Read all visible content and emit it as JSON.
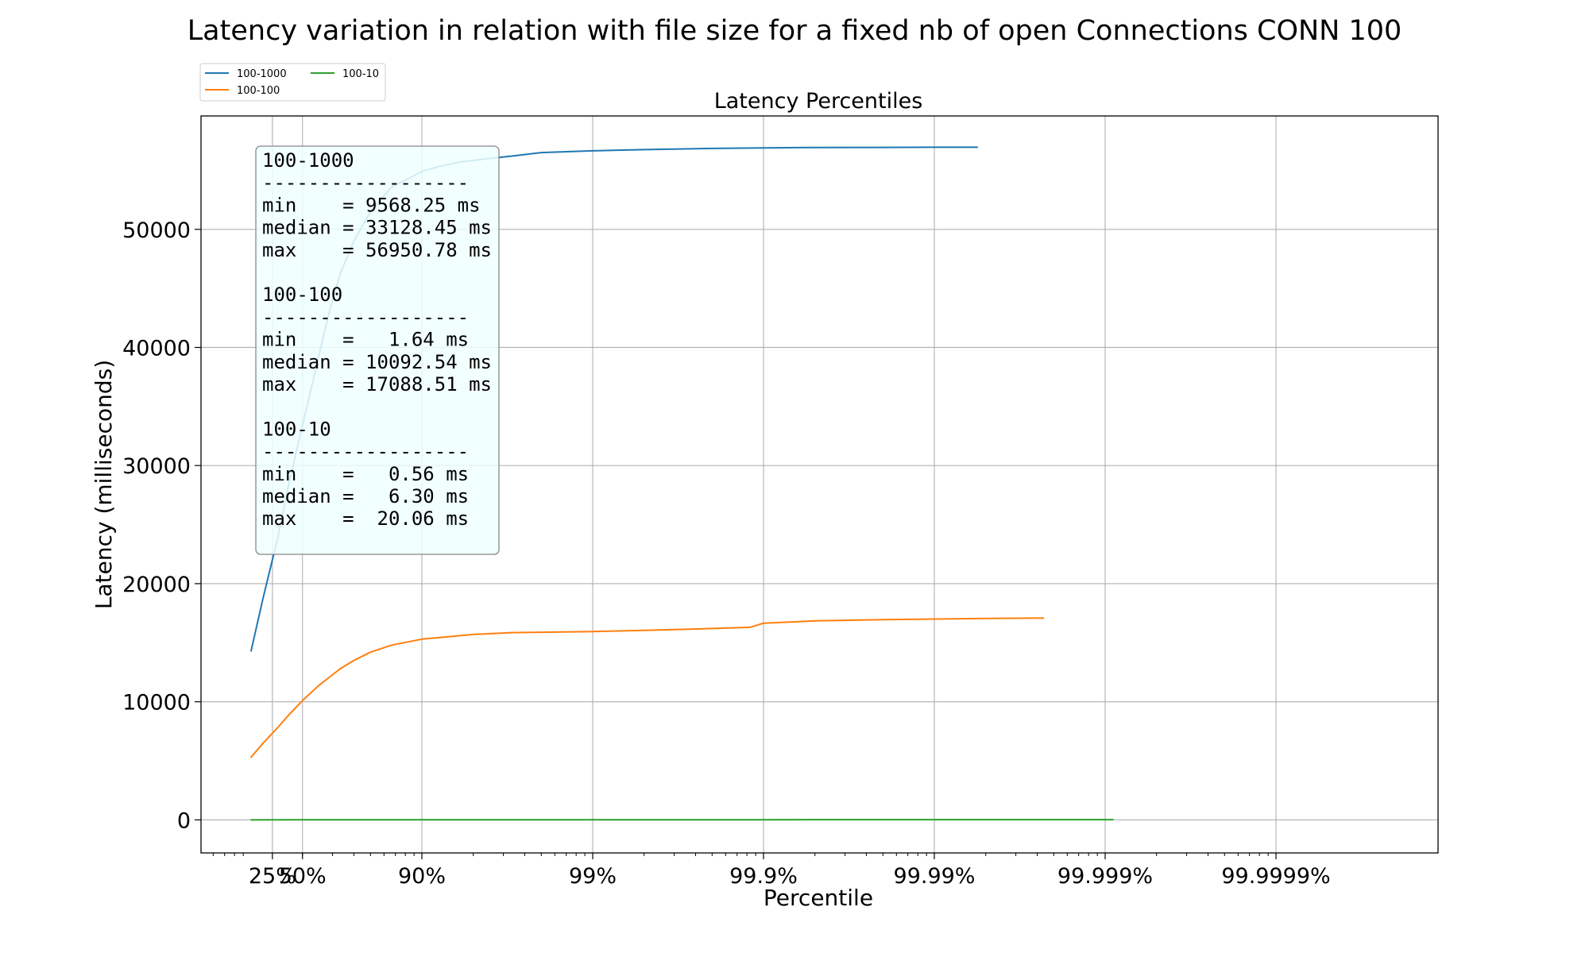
{
  "chart_data": {
    "type": "line",
    "title": "Latency variation in relation with file size for a fixed nb of open Connections CONN 100",
    "subtitle": "Latency Percentiles",
    "xlabel": "Percentile",
    "ylabel": "Latency (milliseconds)",
    "x_scale": "log(1/(1-percentile))",
    "xlim": [
      "",
      "99.9999%"
    ],
    "ylim": [
      -2800,
      59600
    ],
    "grid": true,
    "legend_position": "top-left",
    "x_ticks": [
      {
        "p": 25,
        "label": "25%"
      },
      {
        "p": 50,
        "label": "50%"
      },
      {
        "p": 90,
        "label": "90%"
      },
      {
        "p": 99,
        "label": "99%"
      },
      {
        "p": 99.9,
        "label": "99.9%"
      },
      {
        "p": 99.99,
        "label": "99.99%"
      },
      {
        "p": 99.999,
        "label": "99.999%"
      },
      {
        "p": 99.9999,
        "label": "99.9999%"
      }
    ],
    "y_ticks": [
      {
        "v": 0,
        "label": "0"
      },
      {
        "v": 10000,
        "label": "10000"
      },
      {
        "v": 20000,
        "label": "20000"
      },
      {
        "v": 30000,
        "label": "30000"
      },
      {
        "v": 40000,
        "label": "40000"
      },
      {
        "v": 50000,
        "label": "50000"
      }
    ],
    "series": [
      {
        "name": "100-1000",
        "color": "#1f77b4",
        "points": [
          [
            0,
            14300
          ],
          [
            15,
            18800
          ],
          [
            30,
            23800
          ],
          [
            40,
            28500
          ],
          [
            50,
            33400
          ],
          [
            55,
            36200
          ],
          [
            60,
            39400
          ],
          [
            65,
            42900
          ],
          [
            70,
            46300
          ],
          [
            75,
            49000
          ],
          [
            80,
            51500
          ],
          [
            85,
            53600
          ],
          [
            88,
            54300
          ],
          [
            90,
            54900
          ],
          [
            92,
            55300
          ],
          [
            94,
            55700
          ],
          [
            96,
            56000
          ],
          [
            97,
            56200
          ],
          [
            98,
            56500
          ],
          [
            99,
            56650
          ],
          [
            99.5,
            56750
          ],
          [
            99.8,
            56850
          ],
          [
            99.9,
            56900
          ],
          [
            99.95,
            56930
          ],
          [
            99.98,
            56940
          ],
          [
            99.99,
            56950
          ],
          [
            99.9944,
            56950.78
          ]
        ]
      },
      {
        "name": "100-100",
        "color": "#ff7f0e",
        "points": [
          [
            0,
            5300
          ],
          [
            15,
            6500
          ],
          [
            30,
            7800
          ],
          [
            40,
            8900
          ],
          [
            50,
            10100
          ],
          [
            60,
            11400
          ],
          [
            70,
            12800
          ],
          [
            75,
            13500
          ],
          [
            80,
            14200
          ],
          [
            85,
            14800
          ],
          [
            90,
            15300
          ],
          [
            93,
            15500
          ],
          [
            95,
            15700
          ],
          [
            97,
            15850
          ],
          [
            99,
            15950
          ],
          [
            99.5,
            16050
          ],
          [
            99.8,
            16200
          ],
          [
            99.88,
            16300
          ],
          [
            99.9,
            16650
          ],
          [
            99.95,
            16850
          ],
          [
            99.98,
            16950
          ],
          [
            99.99,
            17000
          ],
          [
            99.995,
            17050
          ],
          [
            99.9977,
            17088.51
          ]
        ]
      },
      {
        "name": "100-10",
        "color": "#2ca02c",
        "points": [
          [
            0,
            0.56
          ],
          [
            50,
            6.3
          ],
          [
            90,
            9
          ],
          [
            99,
            12
          ],
          [
            99.9,
            14
          ],
          [
            99.99,
            16
          ],
          [
            99.9991,
            20.06
          ]
        ]
      }
    ],
    "stats_box": [
      "100-1000",
      "------------------",
      "min    = 9568.25 ms",
      "median = 33128.45 ms",
      "max    = 56950.78 ms",
      "",
      "100-100",
      "------------------",
      "min    =   1.64 ms",
      "median = 10092.54 ms",
      "max    = 17088.51 ms",
      "",
      "100-10",
      "------------------",
      "min    =   0.56 ms",
      "median =   6.30 ms",
      "max    =  20.06 ms"
    ]
  }
}
